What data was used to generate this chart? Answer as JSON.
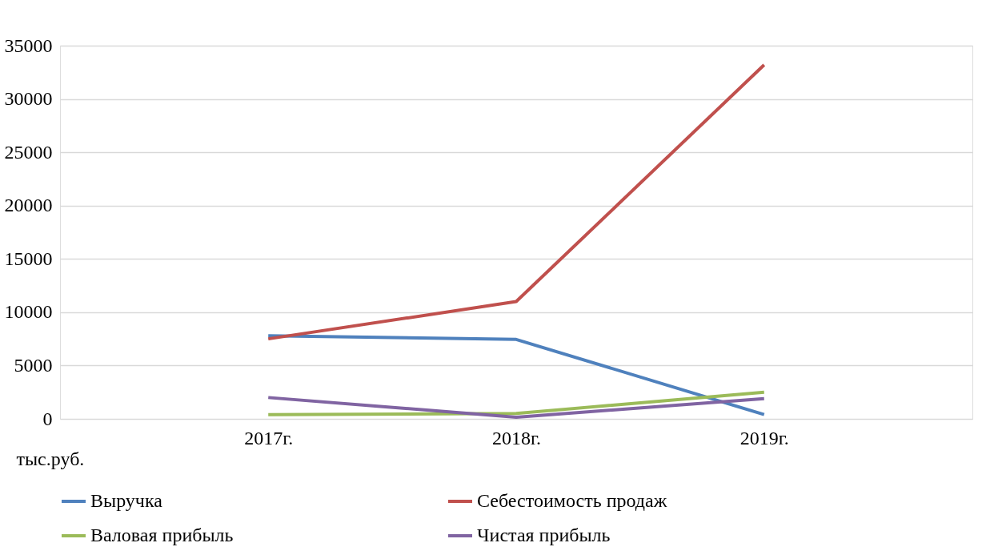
{
  "chart_data": {
    "type": "line",
    "ylabel": "тыс.руб.",
    "categories": [
      "2017г.",
      "2018г.",
      "2019г."
    ],
    "series": [
      {
        "name": "Выручка",
        "color": "#4f81bd",
        "values": [
          7800,
          7450,
          400
        ]
      },
      {
        "name": "Себестоимость продаж",
        "color": "#c0504d",
        "values": [
          7500,
          11000,
          33200
        ]
      },
      {
        "name": "Валовая прибыль",
        "color": "#9bbb59",
        "values": [
          400,
          500,
          2500
        ]
      },
      {
        "name": "Чистая прибыль",
        "color": "#8064a2",
        "values": [
          2000,
          150,
          1900
        ]
      }
    ],
    "ylim": [
      0,
      35000
    ],
    "yticks": [
      0,
      5000,
      10000,
      15000,
      20000,
      25000,
      30000,
      35000
    ],
    "grid": "y",
    "legend": "bottom",
    "marker": "none",
    "line_style": "solid"
  }
}
